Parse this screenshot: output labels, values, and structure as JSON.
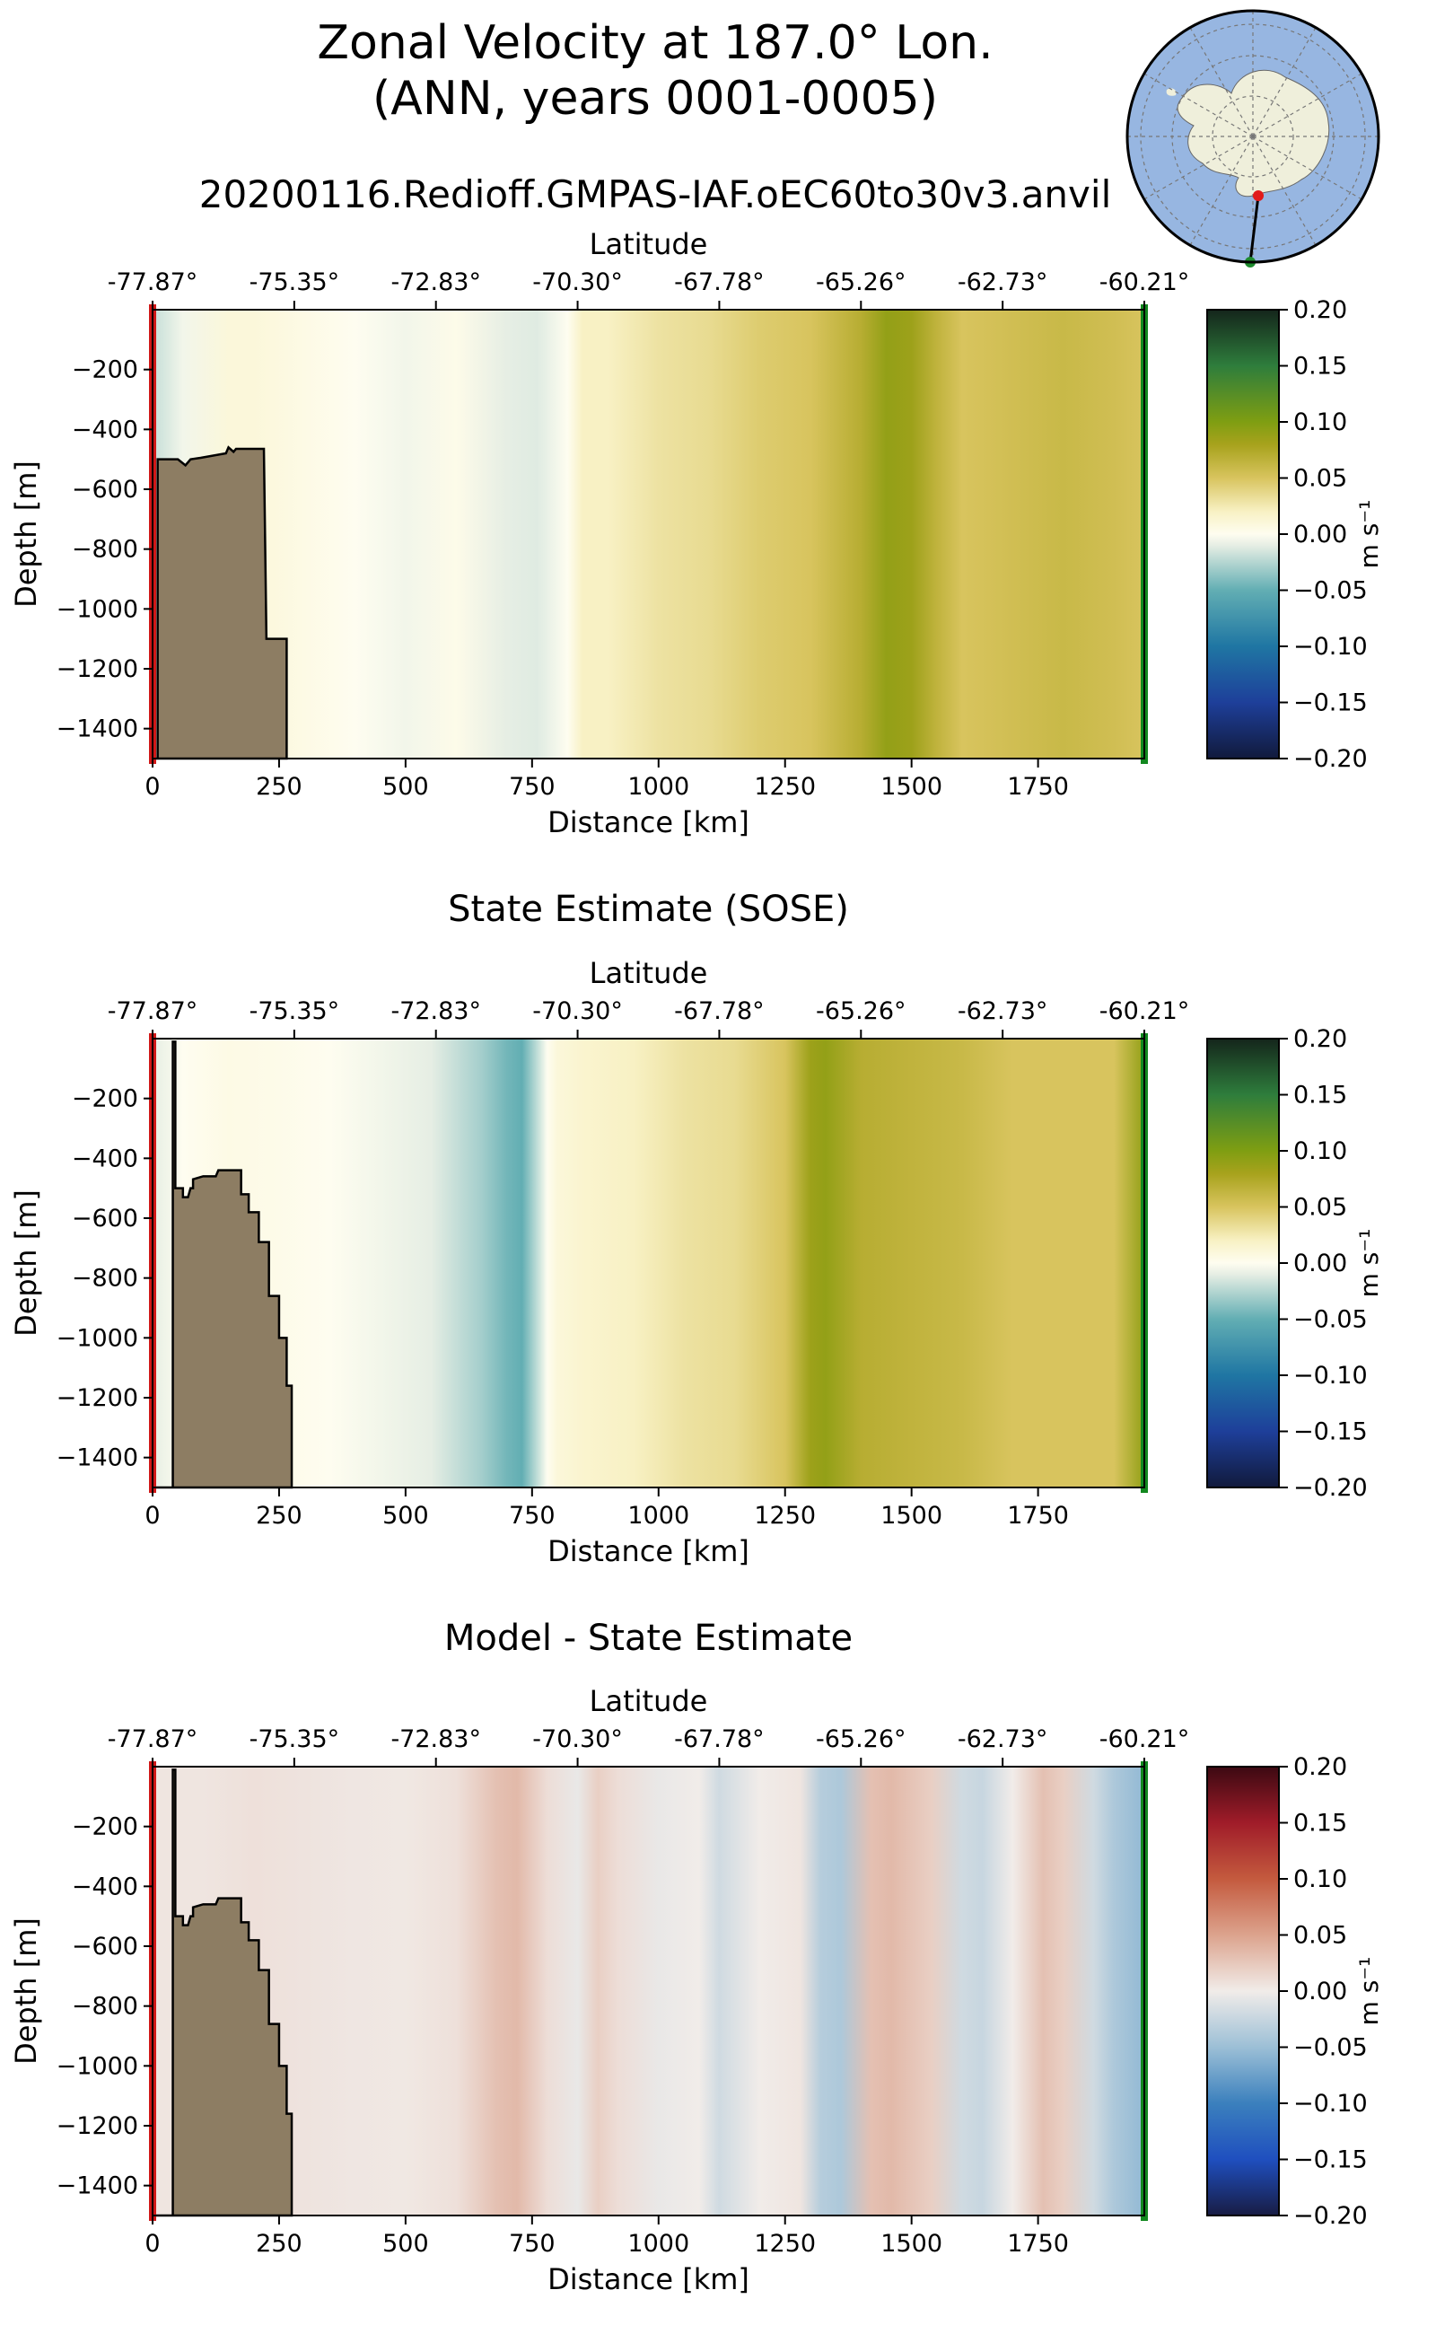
{
  "title_line1": "Zonal Velocity at 187.0° Lon.",
  "title_line2": "(ANN, years 0001-0005)",
  "run_name": "20200116.Redioff.GMPAS-IAF.oEC60to30v3.anvil",
  "inset_map": {
    "description_name": "antarctic-inset-map",
    "ocean_color": "#97b6e1",
    "land_color": "#efefdb",
    "start_marker_color": "#e11a1a",
    "end_marker_color": "#1e8c2e"
  },
  "chart_data": [
    {
      "type": "heatmap",
      "panel": "model",
      "title": "",
      "xlabel": "Distance [km]",
      "ylabel": "Depth [m]",
      "top_axis_label": "Latitude",
      "xlim": [
        0,
        1960
      ],
      "ylim": [
        -1500,
        0
      ],
      "x_ticks": [
        0,
        250,
        500,
        750,
        1000,
        1250,
        1500,
        1750
      ],
      "x_tick_labels": [
        "0",
        "250",
        "500",
        "750",
        "1000",
        "1250",
        "1500",
        "1750"
      ],
      "y_ticks": [
        -200,
        -400,
        -600,
        -800,
        -1000,
        -1200,
        -1400
      ],
      "y_tick_labels": [
        "−200",
        "−400",
        "−600",
        "−800",
        "−1000",
        "−1200",
        "−1400"
      ],
      "lat_ticks_km": [
        0,
        280,
        560,
        840,
        1120,
        1400,
        1680,
        1960
      ],
      "lat_tick_labels": [
        "-77.87°",
        "-75.35°",
        "-72.83°",
        "-70.30°",
        "-67.78°",
        "-65.26°",
        "-62.73°",
        "-60.21°"
      ],
      "colorbar": {
        "label": "m s⁻¹",
        "range": [
          -0.2,
          0.2
        ],
        "ticks": [
          0.2,
          0.15,
          0.1,
          0.05,
          0.0,
          -0.05,
          -0.1,
          -0.15,
          -0.2
        ],
        "tick_labels": [
          "0.20",
          "0.15",
          "0.10",
          "0.05",
          "0.00",
          "−0.05",
          "−0.10",
          "−0.15",
          "−0.20"
        ],
        "palette": "delta"
      },
      "velocity_profile": {
        "x_km": [
          0,
          60,
          150,
          200,
          300,
          400,
          500,
          600,
          700,
          760,
          820,
          850,
          900,
          1000,
          1100,
          1200,
          1300,
          1400,
          1450,
          1500,
          1550,
          1600,
          1700,
          1800,
          1900,
          1960
        ],
        "u_ms": [
          -0.02,
          -0.005,
          0.01,
          0.01,
          0.005,
          0.0,
          -0.005,
          0.003,
          -0.01,
          -0.012,
          0.0,
          0.02,
          0.02,
          0.03,
          0.035,
          0.045,
          0.05,
          0.07,
          0.09,
          0.085,
          0.065,
          0.05,
          0.055,
          0.06,
          0.055,
          0.05
        ]
      },
      "bathymetry": {
        "x_km": [
          0,
          10,
          10,
          50,
          65,
          75,
          95,
          145,
          150,
          160,
          165,
          200,
          220,
          225,
          260,
          265,
          265
        ],
        "depth_m": [
          -1500,
          -1500,
          -500,
          -500,
          -520,
          -500,
          -495,
          -480,
          -460,
          -475,
          -465,
          -465,
          -465,
          -1100,
          -1100,
          -1100,
          -1500
        ]
      }
    },
    {
      "type": "heatmap",
      "panel": "sose",
      "title": "State Estimate (SOSE)",
      "xlabel": "Distance [km]",
      "ylabel": "Depth [m]",
      "top_axis_label": "Latitude",
      "xlim": [
        0,
        1960
      ],
      "ylim": [
        -1500,
        0
      ],
      "x_ticks": [
        0,
        250,
        500,
        750,
        1000,
        1250,
        1500,
        1750
      ],
      "x_tick_labels": [
        "0",
        "250",
        "500",
        "750",
        "1000",
        "1250",
        "1500",
        "1750"
      ],
      "y_ticks": [
        -200,
        -400,
        -600,
        -800,
        -1000,
        -1200,
        -1400
      ],
      "y_tick_labels": [
        "−200",
        "−400",
        "−600",
        "−800",
        "−1000",
        "−1200",
        "−1400"
      ],
      "lat_ticks_km": [
        0,
        280,
        560,
        840,
        1120,
        1400,
        1680,
        1960
      ],
      "lat_tick_labels": [
        "-77.87°",
        "-75.35°",
        "-72.83°",
        "-70.30°",
        "-67.78°",
        "-65.26°",
        "-62.73°",
        "-60.21°"
      ],
      "colorbar": {
        "label": "m s⁻¹",
        "range": [
          -0.2,
          0.2
        ],
        "ticks": [
          0.2,
          0.15,
          0.1,
          0.05,
          0.0,
          -0.05,
          -0.1,
          -0.15,
          -0.2
        ],
        "tick_labels": [
          "0.20",
          "0.15",
          "0.10",
          "0.05",
          "0.00",
          "−0.05",
          "−0.10",
          "−0.15",
          "−0.20"
        ],
        "palette": "delta"
      },
      "velocity_profile": {
        "x_km": [
          0,
          60,
          150,
          250,
          350,
          450,
          550,
          650,
          700,
          730,
          780,
          800,
          850,
          950,
          1050,
          1150,
          1250,
          1300,
          1330,
          1400,
          1500,
          1600,
          1700,
          1800,
          1900,
          1960
        ],
        "u_ms": [
          -0.01,
          0.0,
          0.005,
          0.003,
          0.0,
          -0.005,
          -0.01,
          -0.03,
          -0.045,
          -0.05,
          0.0,
          0.01,
          0.015,
          0.02,
          0.03,
          0.035,
          0.05,
          0.085,
          0.09,
          0.07,
          0.065,
          0.06,
          0.05,
          0.05,
          0.05,
          0.09
        ]
      },
      "bathymetry": {
        "x_km": [
          0,
          40,
          40,
          45,
          45,
          60,
          60,
          70,
          75,
          80,
          80,
          100,
          125,
          130,
          175,
          175,
          190,
          190,
          210,
          210,
          230,
          230,
          250,
          250,
          265,
          265,
          275,
          275,
          275
        ],
        "depth_m": [
          -1500,
          -1500,
          -10,
          -10,
          -500,
          -500,
          -530,
          -530,
          -500,
          -500,
          -470,
          -460,
          -460,
          -440,
          -440,
          -520,
          -520,
          -580,
          -580,
          -680,
          -680,
          -860,
          -860,
          -1000,
          -1000,
          -1160,
          -1160,
          -1500,
          -1500
        ]
      }
    },
    {
      "type": "heatmap",
      "panel": "difference",
      "title": "Model - State Estimate",
      "xlabel": "Distance [km]",
      "ylabel": "Depth [m]",
      "top_axis_label": "Latitude",
      "xlim": [
        0,
        1960
      ],
      "ylim": [
        -1500,
        0
      ],
      "x_ticks": [
        0,
        250,
        500,
        750,
        1000,
        1250,
        1500,
        1750
      ],
      "x_tick_labels": [
        "0",
        "250",
        "500",
        "750",
        "1000",
        "1250",
        "1500",
        "1750"
      ],
      "y_ticks": [
        -200,
        -400,
        -600,
        -800,
        -1000,
        -1200,
        -1400
      ],
      "y_tick_labels": [
        "−200",
        "−400",
        "−600",
        "−800",
        "−1000",
        "−1200",
        "−1400"
      ],
      "lat_ticks_km": [
        0,
        280,
        560,
        840,
        1120,
        1400,
        1680,
        1960
      ],
      "lat_tick_labels": [
        "-77.87°",
        "-75.35°",
        "-72.83°",
        "-70.30°",
        "-67.78°",
        "-65.26°",
        "-62.73°",
        "-60.21°"
      ],
      "colorbar": {
        "label": "m s⁻¹",
        "range": [
          -0.2,
          0.2
        ],
        "ticks": [
          0.2,
          0.15,
          0.1,
          0.05,
          0.0,
          -0.05,
          -0.1,
          -0.15,
          -0.2
        ],
        "tick_labels": [
          "0.20",
          "0.15",
          "0.10",
          "0.05",
          "0.00",
          "−0.05",
          "−0.10",
          "−0.15",
          "−0.20"
        ],
        "palette": "balance"
      },
      "velocity_profile": {
        "x_km": [
          0,
          100,
          200,
          300,
          400,
          500,
          600,
          680,
          720,
          780,
          840,
          880,
          920,
          1000,
          1080,
          1120,
          1200,
          1280,
          1320,
          1360,
          1420,
          1460,
          1540,
          1600,
          1640,
          1700,
          1760,
          1800,
          1860,
          1900,
          1960
        ],
        "u_ms": [
          0.005,
          0.005,
          0.008,
          0.006,
          0.004,
          0.003,
          0.008,
          0.03,
          0.035,
          0.01,
          -0.005,
          0.02,
          0.01,
          -0.005,
          0.0,
          -0.02,
          0.0,
          0.005,
          -0.035,
          -0.04,
          0.03,
          0.035,
          0.02,
          -0.02,
          -0.025,
          0.0,
          0.03,
          0.02,
          -0.02,
          -0.04,
          -0.055
        ]
      },
      "bathymetry": {
        "x_km": [
          0,
          40,
          40,
          45,
          45,
          60,
          60,
          70,
          75,
          80,
          80,
          100,
          125,
          130,
          175,
          175,
          190,
          190,
          210,
          210,
          230,
          230,
          250,
          250,
          265,
          265,
          275,
          275,
          275
        ],
        "depth_m": [
          -1500,
          -1500,
          -10,
          -10,
          -500,
          -500,
          -530,
          -530,
          -500,
          -500,
          -470,
          -460,
          -460,
          -440,
          -440,
          -520,
          -520,
          -580,
          -580,
          -680,
          -680,
          -860,
          -860,
          -1000,
          -1000,
          -1160,
          -1160,
          -1500,
          -1500
        ]
      }
    }
  ]
}
